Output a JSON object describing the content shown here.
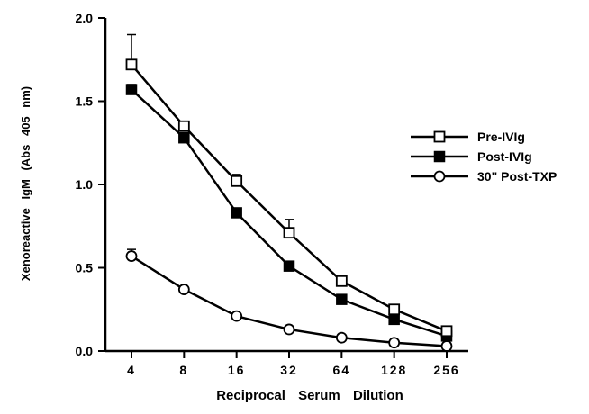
{
  "chart_data": {
    "type": "line",
    "xlabel": "Reciprocal Serum Dilution",
    "ylabel": "Xenoreactive IgM (Abs 405 nm)",
    "categories": [
      "4",
      "8",
      "16",
      "32",
      "64",
      "128",
      "256"
    ],
    "x": [
      4,
      8,
      16,
      32,
      64,
      128,
      256
    ],
    "x_scale": "log2",
    "ylim": [
      0,
      2.0
    ],
    "y_ticks": [
      "0.0",
      "0.5",
      "1.0",
      "1.5",
      "2.0"
    ],
    "y_tick_values": [
      0,
      0.5,
      1.0,
      1.5,
      2.0
    ],
    "grid": false,
    "legend_position": "right",
    "series": [
      {
        "name": "Pre-IVIg",
        "marker": "open-square",
        "values": [
          1.72,
          1.35,
          1.02,
          0.71,
          0.42,
          0.25,
          0.12
        ],
        "error_plus": [
          0.18,
          0.02,
          0.04,
          0.08,
          0.03,
          0.01,
          0.01
        ]
      },
      {
        "name": "Post-IVIg",
        "marker": "filled-square",
        "values": [
          1.57,
          1.28,
          0.83,
          0.51,
          0.31,
          0.19,
          0.09
        ],
        "error_plus": [
          0.03,
          0.01,
          0.01,
          0.01,
          0.01,
          0.01,
          0.01
        ]
      },
      {
        "name": "30\" Post-TXP",
        "marker": "open-circle",
        "values": [
          0.57,
          0.37,
          0.21,
          0.13,
          0.08,
          0.05,
          0.03
        ],
        "error_plus": [
          0.04,
          0.01,
          0.01,
          0.01,
          0.01,
          0.01,
          0.01
        ]
      }
    ]
  }
}
